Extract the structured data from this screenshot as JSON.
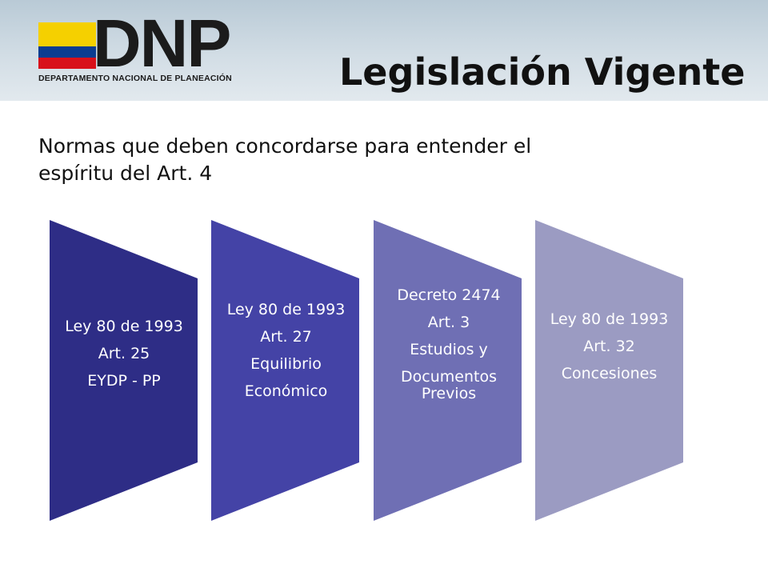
{
  "brand": {
    "logo_text": "DNP",
    "logo_subtitle": "DEPARTAMENTO NACIONAL DE PLANEACIÓN",
    "flag_colors": [
      "#f5d000",
      "#0b3d91",
      "#d8111b"
    ]
  },
  "slide": {
    "title": "Legislación Vigente",
    "subtitle_line1": "Normas que deben concordarse para entender el",
    "subtitle_line2": "espíritu del Art. 4"
  },
  "stages": [
    {
      "color": "#2e2d86",
      "lines": [
        "Ley 80 de 1993",
        "Art. 25",
        "EYDP - PP"
      ]
    },
    {
      "color": "#4443a6",
      "lines": [
        "Ley 80 de 1993",
        "Art. 27",
        "Equilibrio",
        "Económico"
      ]
    },
    {
      "color": "#6f6fb4",
      "lines": [
        "Decreto 2474",
        "Art. 3",
        "Estudios y",
        "Documentos Previos"
      ]
    },
    {
      "color": "#9b9bc2",
      "lines": [
        "Ley 80 de 1993",
        "Art. 32",
        "Concesiones"
      ]
    }
  ]
}
